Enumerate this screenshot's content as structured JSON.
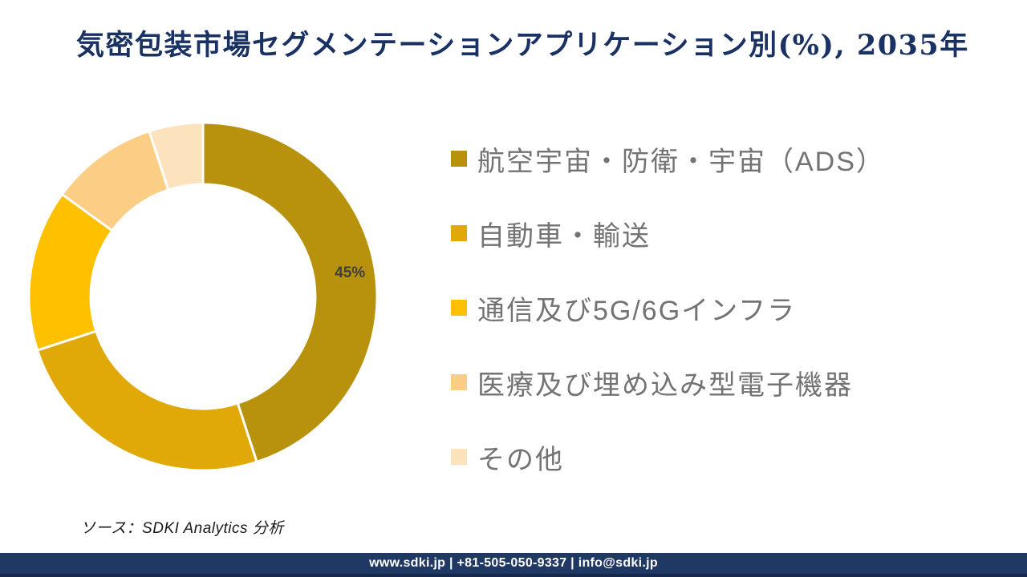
{
  "page": {
    "title": "気密包装市場セグメンテーションアプリケーション別(%), 2035年",
    "title_color": "#1A3263",
    "background": "#FFFFFF"
  },
  "chart_data": {
    "type": "pie",
    "subtype": "donut",
    "title": "気密包装市場セグメンテーションアプリケーション別(%), 2035年",
    "unit": "%",
    "year": "2035",
    "direction": "clockwise",
    "start_angle_deg": 0,
    "inner_radius_ratio": 0.645,
    "gap_color": "#FFFFFF",
    "legend_position": "right",
    "categories": [
      "航空宇宙・防衛・宇宙（ADS）",
      "自動車・輸送",
      "通信及び5G/6Gインフラ",
      "医療及び埋め込み型電子機器",
      "その他"
    ],
    "values": [
      45,
      25,
      15,
      10,
      5
    ],
    "slices": [
      {
        "label": "航空宇宙・防衛・宇宙（ADS）",
        "value": 45,
        "color": "#B8910D",
        "data_label": "45%"
      },
      {
        "label": "自動車・輸送",
        "value": 25,
        "color": "#E0A908",
        "data_label": ""
      },
      {
        "label": "通信及び5G/6Gインフラ",
        "value": 15,
        "color": "#FFC000",
        "data_label": ""
      },
      {
        "label": "医療及び埋め込み型電子機器",
        "value": 10,
        "color": "#FBCD85",
        "data_label": ""
      },
      {
        "label": "その他",
        "value": 5,
        "color": "#FCE3BD",
        "data_label": ""
      }
    ],
    "data_label_color": "#3F3F3F"
  },
  "legend": {
    "text_color": "#737373",
    "items": [
      {
        "label": "航空宇宙・防衛・宇宙（ADS）",
        "color": "#B8910D"
      },
      {
        "label": "自動車・輸送",
        "color": "#E0A908"
      },
      {
        "label": "通信及び5G/6Gインフラ",
        "color": "#FFC000"
      },
      {
        "label": "医療及び埋め込み型電子機器",
        "color": "#FBCD85"
      },
      {
        "label": "その他",
        "color": "#FCE3BD"
      }
    ]
  },
  "source": {
    "text": "ソース：SDKI Analytics 分析"
  },
  "footer": {
    "text": "www.sdki.jp | +81-505-050-9337 | info@sdki.jp",
    "background": "#203864",
    "edge_color": "#16294C",
    "text_color": "#FFFFFF"
  }
}
